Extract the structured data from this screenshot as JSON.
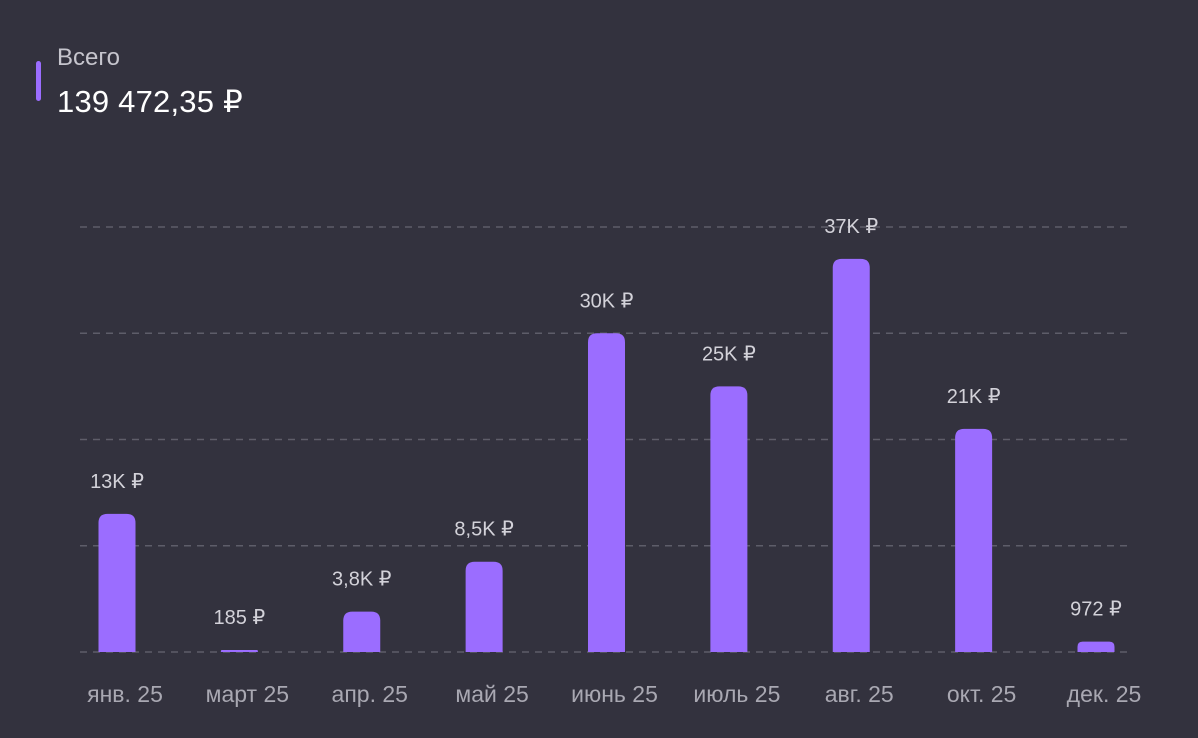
{
  "legend": {
    "label": "Всего",
    "total": "139 472,35 ₽",
    "color": "#9b6dff"
  },
  "chart_data": {
    "type": "bar",
    "title": "",
    "xlabel": "",
    "ylabel": "",
    "ylim": [
      0,
      40000
    ],
    "grid": true,
    "categories": [
      "янв. 25",
      "март 25",
      "апр. 25",
      "май 25",
      "июнь 25",
      "июль 25",
      "авг. 25",
      "окт. 25",
      "дек. 25"
    ],
    "values": [
      13000,
      185,
      3800,
      8500,
      30000,
      25000,
      37000,
      21000,
      972
    ],
    "data_labels": [
      "13K ₽",
      "185 ₽",
      "3,8K ₽",
      "8,5K ₽",
      "30K ₽",
      "25K ₽",
      "37K ₽",
      "21K ₽",
      "972 ₽"
    ],
    "bar_color": "#9b6dff"
  }
}
